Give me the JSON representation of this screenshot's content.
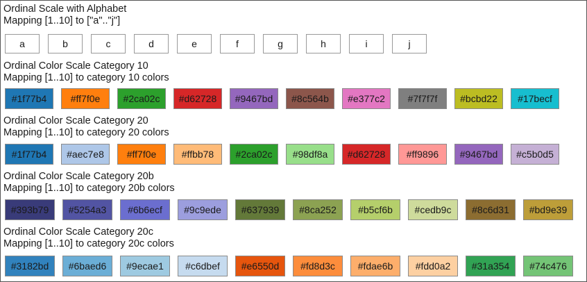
{
  "sections": [
    {
      "title": "Ordinal Scale with Alphabet",
      "subtitle": "Mapping [1..10] to [\"a\"..\"j\"]",
      "items": [
        {
          "label": "a"
        },
        {
          "label": "b"
        },
        {
          "label": "c"
        },
        {
          "label": "d"
        },
        {
          "label": "e"
        },
        {
          "label": "f"
        },
        {
          "label": "g"
        },
        {
          "label": "h"
        },
        {
          "label": "i"
        },
        {
          "label": "j"
        }
      ]
    },
    {
      "title": "Ordinal Color Scale Category 10",
      "subtitle": "Mapping [1..10] to category 10 colors",
      "items": [
        {
          "label": "#1f77b4",
          "color": "#1f77b4"
        },
        {
          "label": "#ff7f0e",
          "color": "#ff7f0e"
        },
        {
          "label": "#2ca02c",
          "color": "#2ca02c"
        },
        {
          "label": "#d62728",
          "color": "#d62728"
        },
        {
          "label": "#9467bd",
          "color": "#9467bd"
        },
        {
          "label": "#8c564b",
          "color": "#8c564b"
        },
        {
          "label": "#e377c2",
          "color": "#e377c2"
        },
        {
          "label": "#7f7f7f",
          "color": "#7f7f7f"
        },
        {
          "label": "#bcbd22",
          "color": "#bcbd22"
        },
        {
          "label": "#17becf",
          "color": "#17becf"
        }
      ]
    },
    {
      "title": "Ordinal Color Scale Category 20",
      "subtitle": "Mapping [1..10] to category 20 colors",
      "items": [
        {
          "label": "#1f77b4",
          "color": "#1f77b4"
        },
        {
          "label": "#aec7e8",
          "color": "#aec7e8"
        },
        {
          "label": "#ff7f0e",
          "color": "#ff7f0e"
        },
        {
          "label": "#ffbb78",
          "color": "#ffbb78"
        },
        {
          "label": "#2ca02c",
          "color": "#2ca02c"
        },
        {
          "label": "#98df8a",
          "color": "#98df8a"
        },
        {
          "label": "#d62728",
          "color": "#d62728"
        },
        {
          "label": "#ff9896",
          "color": "#ff9896"
        },
        {
          "label": "#9467bd",
          "color": "#9467bd"
        },
        {
          "label": "#c5b0d5",
          "color": "#c5b0d5"
        }
      ]
    },
    {
      "title": "Ordinal Color Scale Category 20b",
      "subtitle": "Mapping [1..10] to category 20b colors",
      "items": [
        {
          "label": "#393b79",
          "color": "#393b79"
        },
        {
          "label": "#5254a3",
          "color": "#5254a3"
        },
        {
          "label": "#6b6ecf",
          "color": "#6b6ecf"
        },
        {
          "label": "#9c9ede",
          "color": "#9c9ede"
        },
        {
          "label": "#637939",
          "color": "#637939"
        },
        {
          "label": "#8ca252",
          "color": "#8ca252"
        },
        {
          "label": "#b5cf6b",
          "color": "#b5cf6b"
        },
        {
          "label": "#cedb9c",
          "color": "#cedb9c"
        },
        {
          "label": "#8c6d31",
          "color": "#8c6d31"
        },
        {
          "label": "#bd9e39",
          "color": "#bd9e39"
        }
      ]
    },
    {
      "title": "Ordinal Color Scale Category 20c",
      "subtitle": "Mapping [1..10] to category 20c colors",
      "items": [
        {
          "label": "#3182bd",
          "color": "#3182bd"
        },
        {
          "label": "#6baed6",
          "color": "#6baed6"
        },
        {
          "label": "#9ecae1",
          "color": "#9ecae1"
        },
        {
          "label": "#c6dbef",
          "color": "#c6dbef"
        },
        {
          "label": "#e6550d",
          "color": "#e6550d"
        },
        {
          "label": "#fd8d3c",
          "color": "#fd8d3c"
        },
        {
          "label": "#fdae6b",
          "color": "#fdae6b"
        },
        {
          "label": "#fdd0a2",
          "color": "#fdd0a2"
        },
        {
          "label": "#31a354",
          "color": "#31a354"
        },
        {
          "label": "#74c476",
          "color": "#74c476"
        }
      ]
    }
  ]
}
